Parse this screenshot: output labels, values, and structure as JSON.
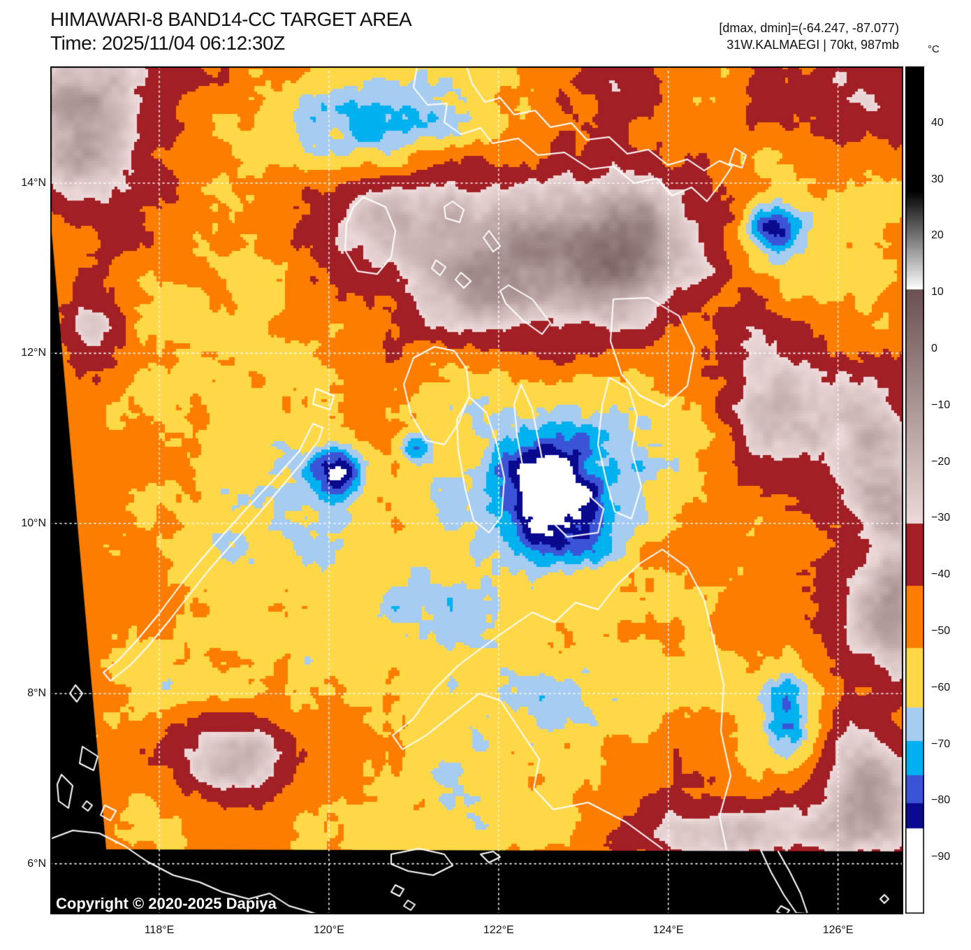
{
  "header": {
    "title": "HIMAWARI-8 BAND14-CC TARGET AREA",
    "time": "Time: 2025/11/04 06:12:30Z",
    "range_info": "[dmax, dmin]=(-64.247, -87.077)",
    "storm_info": "31W.KALMAEGI | 70kt, 987mb"
  },
  "colorbar": {
    "unit": "°C",
    "vmax": 50,
    "vmin": -100,
    "ticks": [
      {
        "label": "40",
        "value": 40
      },
      {
        "label": "30",
        "value": 30
      },
      {
        "label": "20",
        "value": 20
      },
      {
        "label": "10",
        "value": 10
      },
      {
        "label": "0",
        "value": 0
      },
      {
        "label": "−10",
        "value": -10
      },
      {
        "label": "−20",
        "value": -20
      },
      {
        "label": "−30",
        "value": -30
      },
      {
        "label": "−40",
        "value": -40
      },
      {
        "label": "−50",
        "value": -50
      },
      {
        "label": "−60",
        "value": -60
      },
      {
        "label": "−70",
        "value": -70
      },
      {
        "label": "−80",
        "value": -80
      },
      {
        "label": "−90",
        "value": -90
      }
    ],
    "segments": [
      {
        "from": 50,
        "to": 28,
        "color": "#000000"
      },
      {
        "from": 28,
        "to": 10.5,
        "colors": [
          "#000000",
          "#ffffff"
        ]
      },
      {
        "from": 10.5,
        "to": -31,
        "colors": [
          "#6b5151",
          "#eedada"
        ]
      },
      {
        "from": -31,
        "to": -42,
        "color": "#a31f26"
      },
      {
        "from": -42,
        "to": -53,
        "color": "#fd7d01"
      },
      {
        "from": -53,
        "to": -63.5,
        "color": "#ffd848"
      },
      {
        "from": -63.5,
        "to": -69.5,
        "color": "#a7ccf1"
      },
      {
        "from": -69.5,
        "to": -75.5,
        "color": "#00b1f0"
      },
      {
        "from": -75.5,
        "to": -80.5,
        "color": "#3b54d7"
      },
      {
        "from": -80.5,
        "to": -85,
        "color": "#0a0a8e"
      },
      {
        "from": -85,
        "to": -100,
        "color": "#ffffff"
      }
    ]
  },
  "map": {
    "background": "#000000",
    "coastline_color": "#ffffff",
    "grid_color": "#ffffff",
    "lat_ticks": [
      {
        "label": "14°N",
        "value": 14
      },
      {
        "label": "12°N",
        "value": 12
      },
      {
        "label": "10°N",
        "value": 10
      },
      {
        "label": "8°N",
        "value": 8
      },
      {
        "label": "6°N",
        "value": 6
      }
    ],
    "lon_ticks": [
      {
        "label": "118°E",
        "value": 118
      },
      {
        "label": "120°E",
        "value": 120
      },
      {
        "label": "122°E",
        "value": 122
      },
      {
        "label": "124°E",
        "value": 124
      },
      {
        "label": "126°E",
        "value": 126
      }
    ],
    "copyright": "Copyright © 2020-2025 Dapiya"
  }
}
